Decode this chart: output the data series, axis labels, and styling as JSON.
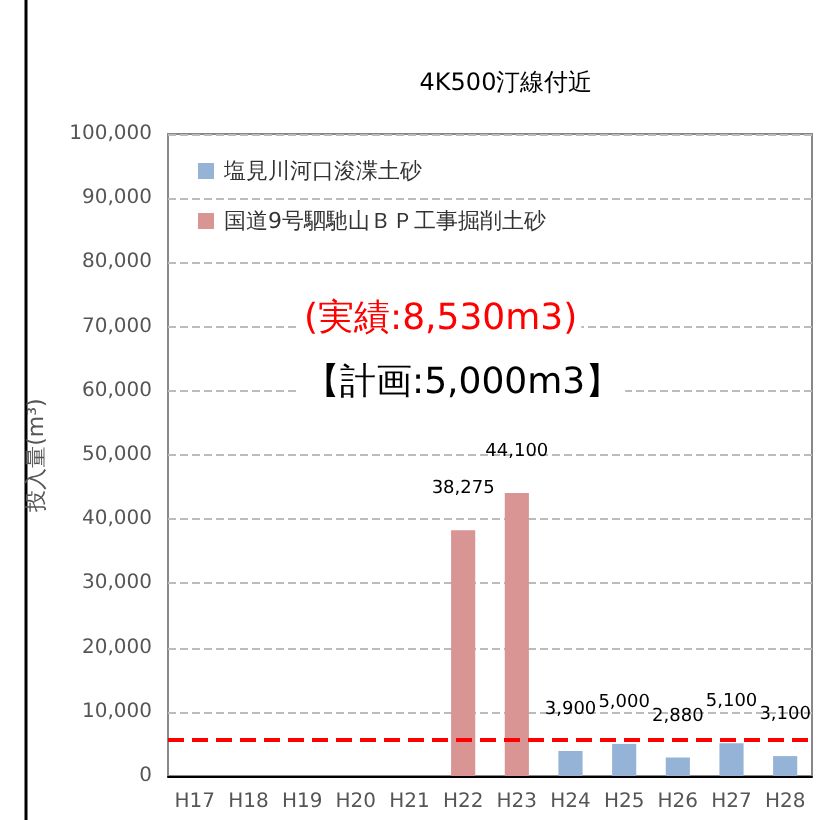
{
  "chart_data": {
    "type": "bar",
    "title": "4K500汀線付近",
    "ylabel": "投入量(m³)",
    "categories": [
      "H17",
      "H18",
      "H19",
      "H20",
      "H21",
      "H22",
      "H23",
      "H24",
      "H25",
      "H26",
      "H27",
      "H28"
    ],
    "series": [
      {
        "name": "塩見川河口浚渫土砂",
        "color": "#95b3d7",
        "values": [
          null,
          null,
          null,
          null,
          null,
          null,
          null,
          3900,
          5000,
          2880,
          5100,
          3100
        ],
        "value_labels": [
          null,
          null,
          null,
          null,
          null,
          null,
          null,
          "3,900",
          "5,000",
          "2,880",
          "5,100",
          "3,100"
        ]
      },
      {
        "name": "国道9号駟馳山ＢＰ工事掘削土砂",
        "color": "#d99594",
        "values": [
          null,
          null,
          null,
          null,
          null,
          38275,
          44100,
          null,
          null,
          null,
          null,
          null
        ],
        "value_labels": [
          null,
          null,
          null,
          null,
          null,
          "38,275",
          "44,100",
          null,
          null,
          null,
          null,
          null
        ]
      }
    ],
    "stacked": true,
    "ylim": [
      0,
      100000
    ],
    "yticks": [
      0,
      {
        "value": 10000,
        "label": "10,000"
      },
      {
        "value": 20000,
        "label": "20,000"
      },
      {
        "value": 30000,
        "label": "30,000"
      },
      {
        "value": 40000,
        "label": "40,000"
      },
      {
        "value": 50000,
        "label": "50,000"
      },
      {
        "value": 60000,
        "label": "60,000"
      },
      {
        "value": 70000,
        "label": "70,000"
      },
      {
        "value": 80000,
        "label": "80,000"
      },
      {
        "value": 90000,
        "label": "90,000"
      },
      {
        "value": 100000,
        "label": "100,000"
      }
    ],
    "ref_lines": [
      {
        "axis": "y",
        "value": 5600,
        "color": "#ff0000",
        "line_style": "dashed"
      }
    ],
    "annotations": [
      "(実績:8,530m3)",
      "【計画:5,000m3】"
    ],
    "grid": "y",
    "legend": "top left"
  }
}
